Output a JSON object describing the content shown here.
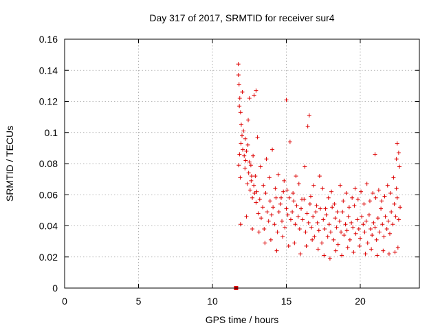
{
  "chart_data": {
    "type": "scatter",
    "title": "Day 317 of 2017, SRMTID for receiver sur4",
    "xlabel": "GPS time / hours",
    "ylabel": "SRMTID / TECUs",
    "xlim": [
      0,
      24
    ],
    "ylim": [
      0,
      0.16
    ],
    "xticks": [
      0,
      5,
      10,
      15,
      20
    ],
    "yticks": [
      0,
      0.02,
      0.04,
      0.06,
      0.08,
      0.1,
      0.12,
      0.14,
      0.16
    ],
    "xtick_labels": [
      "0",
      "5",
      "10",
      "15",
      "20"
    ],
    "ytick_labels": [
      "0",
      "0.02",
      "0.04",
      "0.06",
      "0.08",
      "0.1",
      "0.12",
      "0.14",
      "0.16"
    ],
    "grid": true,
    "marker": "plus",
    "marker_color": "#dd0000",
    "series": [
      {
        "name": "SRMTID",
        "x": [
          11.75,
          11.8,
          11.85,
          11.9,
          11.95,
          12.0,
          11.78,
          11.83,
          11.88,
          11.93,
          12.05,
          12.1,
          12.15,
          12.2,
          12.25,
          12.3,
          12.35,
          12.4,
          12.45,
          12.5,
          12.55,
          12.6,
          12.65,
          12.7,
          12.75,
          12.8,
          12.85,
          12.9,
          12.95,
          13.0,
          13.1,
          13.2,
          13.3,
          13.4,
          13.5,
          13.6,
          13.7,
          13.8,
          13.9,
          14.0,
          14.1,
          14.2,
          14.3,
          14.4,
          14.5,
          14.6,
          14.7,
          14.8,
          14.9,
          15.0,
          15.1,
          15.2,
          15.3,
          15.4,
          15.5,
          15.6,
          15.7,
          15.8,
          15.9,
          16.0,
          16.1,
          16.2,
          16.3,
          16.4,
          16.5,
          16.6,
          16.7,
          16.8,
          16.9,
          17.0,
          17.1,
          17.2,
          17.3,
          17.4,
          17.5,
          17.6,
          17.7,
          17.8,
          17.9,
          18.0,
          18.1,
          18.2,
          18.3,
          18.4,
          18.5,
          18.6,
          18.7,
          18.8,
          18.9,
          19.0,
          19.1,
          19.2,
          19.3,
          19.4,
          19.5,
          19.6,
          19.7,
          19.8,
          19.9,
          20.0,
          20.1,
          20.2,
          20.3,
          20.4,
          20.5,
          20.6,
          20.7,
          20.8,
          20.9,
          21.0,
          21.1,
          21.2,
          21.3,
          21.4,
          21.5,
          21.6,
          21.7,
          21.8,
          21.9,
          22.0,
          22.1,
          22.2,
          22.3,
          22.4,
          22.5,
          22.6,
          22.7,
          11.76,
          11.82,
          12.02,
          12.22,
          12.42,
          12.62,
          12.82,
          13.05,
          13.25,
          13.45,
          13.65,
          13.85,
          14.05,
          14.25,
          14.45,
          14.65,
          14.85,
          15.05,
          15.25,
          15.45,
          15.65,
          15.85,
          16.05,
          16.25,
          16.45,
          16.65,
          16.85,
          17.05,
          17.25,
          17.45,
          17.65,
          17.85,
          18.05,
          18.25,
          18.45,
          18.65,
          18.85,
          19.05,
          19.25,
          19.45,
          19.65,
          19.85,
          20.05,
          20.25,
          20.45,
          20.65,
          20.85,
          21.05,
          21.25,
          21.45,
          21.65,
          21.85,
          22.05,
          22.25,
          22.45,
          22.65,
          11.9,
          12.3,
          12.7,
          13.15,
          13.55,
          13.95,
          14.35,
          14.75,
          15.15,
          15.55,
          15.95,
          16.35,
          16.75,
          17.15,
          17.55,
          17.95,
          18.35,
          18.75,
          19.15,
          19.55,
          19.95,
          20.35,
          20.75,
          21.15,
          21.55,
          21.95,
          22.35,
          22.55,
          16.55,
          15.0,
          12.5,
          12.95,
          22.5,
          22.6,
          21.0,
          22.45
        ],
        "y": [
          0.144,
          0.131,
          0.122,
          0.113,
          0.105,
          0.098,
          0.079,
          0.086,
          0.071,
          0.093,
          0.089,
          0.101,
          0.085,
          0.077,
          0.082,
          0.088,
          0.067,
          0.092,
          0.074,
          0.081,
          0.063,
          0.079,
          0.072,
          0.058,
          0.085,
          0.066,
          0.061,
          0.072,
          0.055,
          0.062,
          0.048,
          0.057,
          0.045,
          0.052,
          0.038,
          0.061,
          0.049,
          0.043,
          0.056,
          0.047,
          0.052,
          0.041,
          0.058,
          0.036,
          0.049,
          0.054,
          0.043,
          0.062,
          0.039,
          0.051,
          0.047,
          0.058,
          0.044,
          0.049,
          0.056,
          0.041,
          0.053,
          0.046,
          0.038,
          0.051,
          0.044,
          0.057,
          0.036,
          0.048,
          0.042,
          0.054,
          0.039,
          0.046,
          0.033,
          0.049,
          0.042,
          0.037,
          0.051,
          0.029,
          0.044,
          0.038,
          0.047,
          0.033,
          0.041,
          0.036,
          0.052,
          0.031,
          0.045,
          0.039,
          0.028,
          0.043,
          0.036,
          0.049,
          0.034,
          0.041,
          0.037,
          0.046,
          0.031,
          0.042,
          0.039,
          0.053,
          0.035,
          0.044,
          0.038,
          0.032,
          0.046,
          0.041,
          0.036,
          0.043,
          0.029,
          0.047,
          0.038,
          0.034,
          0.042,
          0.039,
          0.031,
          0.045,
          0.036,
          0.051,
          0.041,
          0.033,
          0.046,
          0.038,
          0.043,
          0.035,
          0.049,
          0.041,
          0.054,
          0.046,
          0.058,
          0.044,
          0.052,
          0.137,
          0.117,
          0.126,
          0.096,
          0.108,
          0.069,
          0.124,
          0.097,
          0.078,
          0.066,
          0.083,
          0.071,
          0.089,
          0.064,
          0.073,
          0.058,
          0.069,
          0.063,
          0.094,
          0.061,
          0.072,
          0.067,
          0.057,
          0.078,
          0.104,
          0.059,
          0.066,
          0.053,
          0.072,
          0.064,
          0.051,
          0.058,
          0.062,
          0.054,
          0.049,
          0.066,
          0.056,
          0.061,
          0.052,
          0.058,
          0.064,
          0.057,
          0.062,
          0.054,
          0.067,
          0.056,
          0.061,
          0.058,
          0.063,
          0.056,
          0.059,
          0.066,
          0.061,
          0.071,
          0.064,
          0.078,
          0.041,
          0.046,
          0.038,
          0.036,
          0.029,
          0.031,
          0.024,
          0.033,
          0.027,
          0.029,
          0.022,
          0.027,
          0.031,
          0.025,
          0.021,
          0.019,
          0.024,
          0.021,
          0.026,
          0.023,
          0.027,
          0.022,
          0.025,
          0.021,
          0.024,
          0.022,
          0.023,
          0.026,
          0.111,
          0.121,
          0.122,
          0.127,
          0.093,
          0.087,
          0.086,
          0.083
        ],
        "zero_markers": [
          11.6
        ]
      }
    ]
  }
}
